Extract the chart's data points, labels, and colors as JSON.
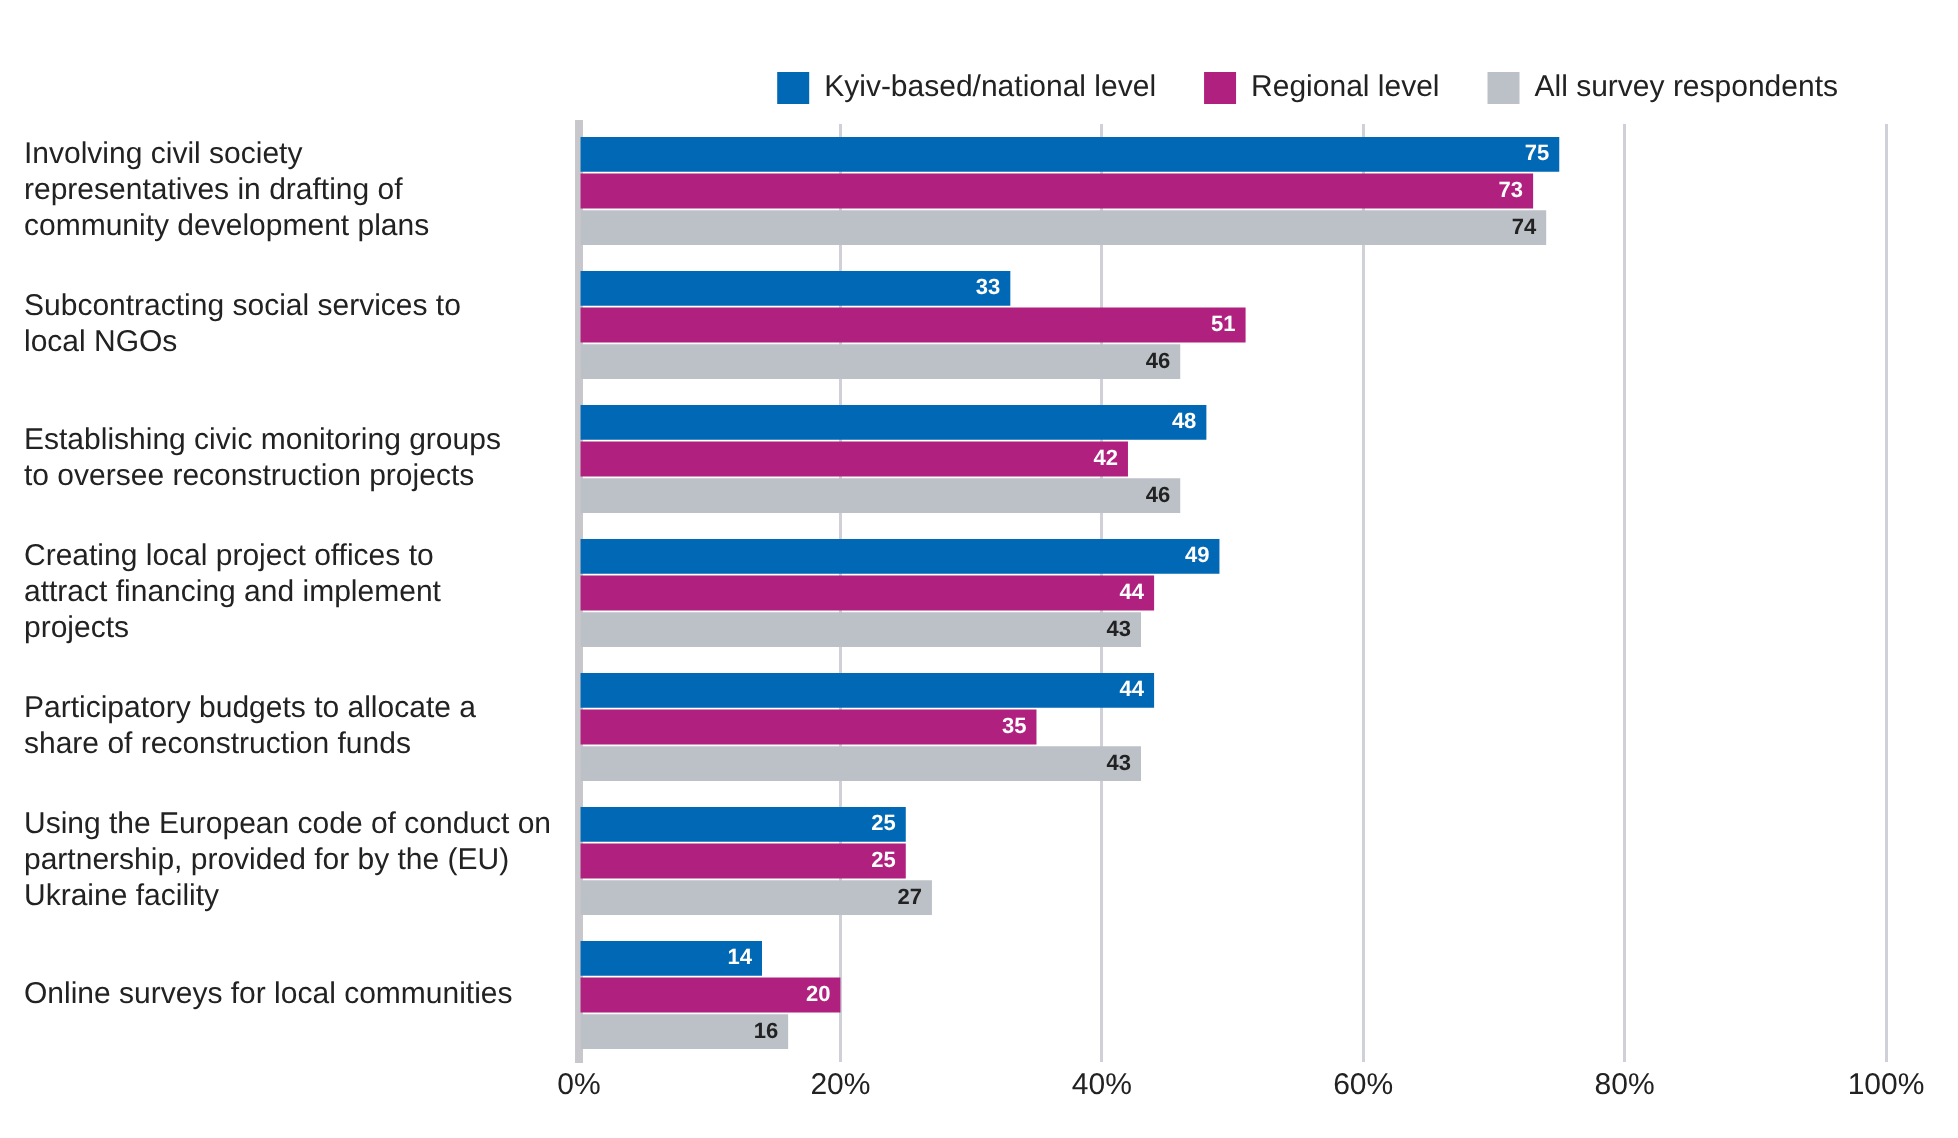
{
  "chart_data": {
    "type": "bar",
    "orientation": "horizontal",
    "categories": [
      "Involving civil society representatives in drafting of community development plans",
      "Subcontracting social services to local NGOs",
      "Establishing civic monitoring groups to oversee reconstruction projects",
      "Creating local project offices to attract financing and implement projects",
      "Participatory budgets to allocate a share of reconstruction funds",
      "Using the European code of conduct on partnership, provided for by the (EU) Ukraine facility",
      "Online surveys for local communities"
    ],
    "series": [
      {
        "name": "Kyiv-based/national level",
        "color": "#0068b4",
        "values": [
          75,
          33,
          48,
          49,
          44,
          25,
          14
        ]
      },
      {
        "name": "Regional level",
        "color": "#b0207e",
        "values": [
          73,
          51,
          42,
          44,
          35,
          25,
          20
        ]
      },
      {
        "name": "All survey respondents",
        "color": "#bcc0c7",
        "values": [
          74,
          46,
          46,
          43,
          43,
          27,
          16
        ]
      }
    ],
    "xlim": [
      0,
      100
    ],
    "xticks": [
      {
        "value": 0,
        "label": "0%"
      },
      {
        "value": 20,
        "label": "20%"
      },
      {
        "value": 40,
        "label": "40%"
      },
      {
        "value": 60,
        "label": "60%"
      },
      {
        "value": 80,
        "label": "80%"
      },
      {
        "value": 100,
        "label": "100%"
      }
    ],
    "grid": "x",
    "legend": "top",
    "data_labels": true
  }
}
